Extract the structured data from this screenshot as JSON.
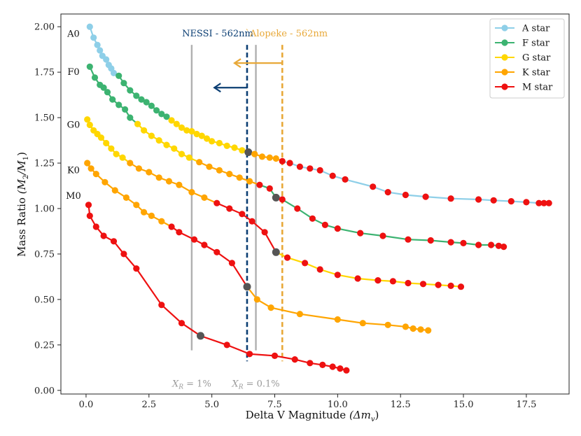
{
  "chart_data": {
    "type": "line",
    "xlabel": "Delta V Magnitude",
    "xlabel_symbol": "(Δm",
    "xlabel_sub": "v",
    "xlabel_close": ")",
    "ylabel": "Mass Ratio",
    "ylabel_symbol": "(M",
    "ylabel_sub1": "2",
    "ylabel_slash": "/M",
    "ylabel_sub2": "1",
    "ylabel_close": ")",
    "xlim": [
      -1.0,
      19.2
    ],
    "ylim": [
      -0.02,
      2.07
    ],
    "x_ticks": [
      0.0,
      2.5,
      5.0,
      7.5,
      10.0,
      12.5,
      15.0,
      17.5
    ],
    "x_tick_labels": [
      "0.0",
      "2.5",
      "5.0",
      "7.5",
      "10.0",
      "12.5",
      "15.0",
      "17.5"
    ],
    "y_ticks": [
      0.0,
      0.25,
      0.5,
      0.75,
      1.0,
      1.25,
      1.5,
      1.75,
      2.0
    ],
    "y_tick_labels": [
      "0.00",
      "0.25",
      "0.50",
      "0.75",
      "1.00",
      "1.25",
      "1.50",
      "1.75",
      "2.00"
    ],
    "legend": {
      "position": "top-right",
      "entries": [
        {
          "label": "A star",
          "color": "#8ecfe8"
        },
        {
          "label": "F star",
          "color": "#3cb371"
        },
        {
          "label": "G star",
          "color": "#ffd700"
        },
        {
          "label": "K star",
          "color": "#ffa500"
        },
        {
          "label": "M star",
          "color": "#ee1111"
        }
      ]
    },
    "series": [
      {
        "name": "A0",
        "row_label": "A0",
        "label_pos": [
          -0.5,
          1.96
        ],
        "x": [
          0.15,
          0.3,
          0.45,
          0.55,
          0.65,
          0.8,
          0.9,
          1.0,
          1.1,
          1.3,
          1.5,
          1.75,
          2.0,
          2.2,
          2.4,
          2.6,
          2.8,
          3.0,
          3.2,
          3.4,
          3.6,
          3.8,
          4.0,
          4.2,
          4.4,
          4.6,
          4.8,
          5.0,
          5.3,
          5.6,
          5.9,
          6.2,
          6.45,
          6.7,
          7.0,
          7.3,
          7.55,
          7.8,
          8.1,
          8.5,
          8.9,
          9.3,
          9.8,
          10.3,
          11.4,
          12.0,
          12.7,
          13.5,
          14.5,
          15.6,
          16.2,
          16.9,
          17.5,
          18.0,
          18.2,
          18.4
        ],
        "y": [
          2.0,
          1.94,
          1.9,
          1.87,
          1.84,
          1.82,
          1.79,
          1.77,
          1.745,
          1.73,
          1.69,
          1.65,
          1.62,
          1.6,
          1.585,
          1.565,
          1.54,
          1.52,
          1.505,
          1.485,
          1.465,
          1.445,
          1.43,
          1.425,
          1.41,
          1.4,
          1.385,
          1.37,
          1.36,
          1.345,
          1.335,
          1.32,
          1.31,
          1.3,
          1.285,
          1.28,
          1.275,
          1.26,
          1.25,
          1.23,
          1.22,
          1.21,
          1.18,
          1.16,
          1.12,
          1.09,
          1.075,
          1.065,
          1.055,
          1.05,
          1.045,
          1.04,
          1.035,
          1.03,
          1.03,
          1.03
        ],
        "colors": [
          "A",
          "A",
          "A",
          "A",
          "A",
          "A",
          "A",
          "A",
          "A",
          "F",
          "F",
          "F",
          "F",
          "F",
          "F",
          "F",
          "F",
          "F",
          "F",
          "G",
          "G",
          "G",
          "G",
          "G",
          "G",
          "G",
          "G",
          "G",
          "G",
          "G",
          "G",
          "G",
          "X",
          "K",
          "K",
          "K",
          "K",
          "M",
          "M",
          "M",
          "M",
          "M",
          "M",
          "M",
          "M",
          "M",
          "M",
          "M",
          "M",
          "M",
          "M",
          "M",
          "M",
          "M",
          "M",
          "M"
        ],
        "line_segments": [
          {
            "from": 0,
            "to": 8,
            "color": "A"
          },
          {
            "from": 8,
            "to": 18,
            "color": "F"
          },
          {
            "from": 18,
            "to": 32,
            "color": "G"
          },
          {
            "from": 32,
            "to": 37,
            "color": "K"
          },
          {
            "from": 37,
            "to": 55,
            "color": "A"
          }
        ]
      },
      {
        "name": "F0",
        "row_label": "F0",
        "label_pos": [
          -0.5,
          1.75
        ],
        "x": [
          0.15,
          0.35,
          0.55,
          0.7,
          0.85,
          1.05,
          1.3,
          1.55,
          1.75,
          2.05,
          2.3,
          2.6,
          2.9,
          3.2,
          3.5,
          3.8,
          4.1,
          4.5,
          4.9,
          5.3,
          5.7,
          6.1,
          6.5,
          6.9,
          7.3,
          7.55,
          7.8,
          8.4,
          9.0,
          9.5,
          10.0,
          10.9,
          11.8,
          12.8,
          13.7,
          14.5,
          15.0,
          15.6,
          16.1,
          16.4,
          16.6
        ],
        "y": [
          1.78,
          1.72,
          1.68,
          1.665,
          1.64,
          1.6,
          1.57,
          1.545,
          1.5,
          1.465,
          1.43,
          1.4,
          1.375,
          1.35,
          1.33,
          1.3,
          1.28,
          1.255,
          1.23,
          1.21,
          1.19,
          1.17,
          1.15,
          1.13,
          1.11,
          1.06,
          1.05,
          1.0,
          0.945,
          0.91,
          0.89,
          0.865,
          0.85,
          0.83,
          0.825,
          0.815,
          0.81,
          0.8,
          0.8,
          0.795,
          0.79
        ],
        "colors": [
          "F",
          "F",
          "F",
          "F",
          "F",
          "F",
          "F",
          "F",
          "F",
          "G",
          "G",
          "G",
          "G",
          "G",
          "G",
          "G",
          "G",
          "K",
          "K",
          "K",
          "K",
          "K",
          "K",
          "M",
          "M",
          "X",
          "M",
          "M",
          "M",
          "M",
          "M",
          "M",
          "M",
          "M",
          "M",
          "M",
          "M",
          "M",
          "M",
          "M",
          "M"
        ],
        "line_segments": [
          {
            "from": 0,
            "to": 9,
            "color": "F"
          },
          {
            "from": 9,
            "to": 17,
            "color": "G"
          },
          {
            "from": 17,
            "to": 23,
            "color": "K"
          },
          {
            "from": 23,
            "to": 40,
            "color": "F"
          }
        ]
      },
      {
        "name": "G0",
        "row_label": "G0",
        "label_pos": [
          -0.5,
          1.46
        ],
        "x": [
          0.05,
          0.15,
          0.3,
          0.45,
          0.6,
          0.8,
          1.0,
          1.2,
          1.45,
          1.75,
          2.1,
          2.5,
          2.9,
          3.3,
          3.7,
          4.2,
          4.7,
          5.2,
          5.7,
          6.2,
          6.6,
          7.1,
          7.55,
          8.0,
          8.7,
          9.3,
          10.0,
          10.8,
          11.6,
          12.2,
          12.8,
          13.4,
          14.0,
          14.5,
          14.9
        ],
        "y": [
          1.49,
          1.46,
          1.43,
          1.41,
          1.39,
          1.36,
          1.33,
          1.3,
          1.28,
          1.25,
          1.22,
          1.2,
          1.17,
          1.15,
          1.13,
          1.09,
          1.06,
          1.03,
          1.0,
          0.97,
          0.93,
          0.87,
          0.76,
          0.73,
          0.7,
          0.665,
          0.635,
          0.615,
          0.605,
          0.6,
          0.59,
          0.585,
          0.58,
          0.575,
          0.57
        ],
        "colors": [
          "G",
          "G",
          "G",
          "G",
          "G",
          "G",
          "G",
          "G",
          "G",
          "K",
          "K",
          "K",
          "K",
          "K",
          "K",
          "K",
          "K",
          "M",
          "M",
          "M",
          "M",
          "M",
          "X",
          "M",
          "M",
          "M",
          "M",
          "M",
          "M",
          "M",
          "M",
          "M",
          "M",
          "M",
          "M"
        ],
        "line_segments": [
          {
            "from": 0,
            "to": 9,
            "color": "G"
          },
          {
            "from": 9,
            "to": 17,
            "color": "K"
          },
          {
            "from": 17,
            "to": 22,
            "color": "M"
          },
          {
            "from": 22,
            "to": 34,
            "color": "G"
          }
        ]
      },
      {
        "name": "K0",
        "row_label": "K0",
        "label_pos": [
          -0.5,
          1.21
        ],
        "x": [
          0.05,
          0.2,
          0.4,
          0.75,
          1.15,
          1.6,
          2.0,
          2.3,
          2.6,
          3.0,
          3.4,
          3.7,
          4.3,
          4.7,
          5.2,
          5.8,
          6.4,
          6.8,
          7.35,
          8.5,
          10.0,
          11.0,
          12.0,
          12.7,
          13.0,
          13.3,
          13.6
        ],
        "y": [
          1.25,
          1.22,
          1.19,
          1.145,
          1.1,
          1.06,
          1.02,
          0.98,
          0.96,
          0.93,
          0.9,
          0.87,
          0.83,
          0.8,
          0.76,
          0.7,
          0.57,
          0.5,
          0.455,
          0.42,
          0.39,
          0.37,
          0.36,
          0.35,
          0.34,
          0.335,
          0.33
        ],
        "colors": [
          "K",
          "K",
          "K",
          "K",
          "K",
          "K",
          "K",
          "K",
          "K",
          "K",
          "M",
          "M",
          "M",
          "M",
          "M",
          "M",
          "X",
          "K",
          "K",
          "K",
          "K",
          "K",
          "K",
          "K",
          "K",
          "K",
          "K"
        ],
        "line_segments": [
          {
            "from": 0,
            "to": 10,
            "color": "K"
          },
          {
            "from": 10,
            "to": 16,
            "color": "M"
          },
          {
            "from": 16,
            "to": 26,
            "color": "K"
          }
        ]
      },
      {
        "name": "M0",
        "row_label": "M0",
        "label_pos": [
          -0.5,
          1.07
        ],
        "x": [
          0.1,
          0.15,
          0.4,
          0.7,
          1.1,
          1.5,
          2.0,
          3.0,
          3.8,
          4.55,
          5.6,
          6.5,
          7.5,
          8.3,
          8.9,
          9.4,
          9.8,
          10.1,
          10.35
        ],
        "y": [
          1.02,
          0.96,
          0.9,
          0.85,
          0.82,
          0.75,
          0.67,
          0.47,
          0.37,
          0.3,
          0.25,
          0.2,
          0.19,
          0.17,
          0.15,
          0.14,
          0.13,
          0.12,
          0.11
        ],
        "colors": [
          "M",
          "M",
          "M",
          "M",
          "M",
          "M",
          "M",
          "M",
          "M",
          "X",
          "M",
          "M",
          "M",
          "M",
          "M",
          "M",
          "M",
          "M",
          "M"
        ],
        "line_segments": [
          {
            "from": 0,
            "to": 18,
            "color": "M"
          }
        ]
      }
    ],
    "vertical_lines": [
      {
        "x": 4.2,
        "style": "solid",
        "color": "#b0b0b0",
        "label": "X",
        "label_sub": "R",
        "label_rest": " = 1%"
      },
      {
        "x": 6.75,
        "style": "solid",
        "color": "#b0b0b0",
        "label": "X",
        "label_sub": "R",
        "label_rest": " = 0.1%"
      },
      {
        "x": 6.4,
        "style": "dashed",
        "color": "#0b3e73",
        "label": "NESSI - 562nm"
      },
      {
        "x": 7.8,
        "style": "dashed",
        "color": "#e8a838",
        "label": "`Alopeke - 562nm"
      }
    ],
    "arrows": [
      {
        "from_x": 6.4,
        "to_x": 5.1,
        "y": 1.665,
        "color": "#0b3e73"
      },
      {
        "from_x": 7.8,
        "to_x": 5.9,
        "y": 1.8,
        "color": "#e8a838"
      }
    ],
    "annotation_colors": {
      "crossing": "#555555"
    }
  }
}
